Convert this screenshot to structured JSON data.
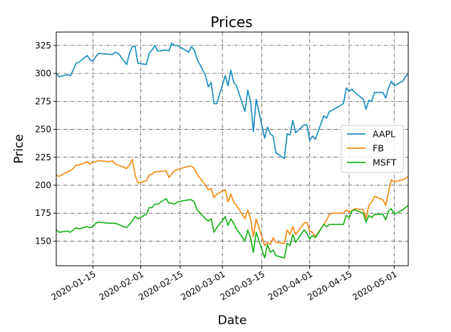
{
  "chart_data": {
    "type": "line",
    "title": "Prices",
    "xlabel": "Date",
    "ylabel": "Price",
    "xlim": [
      "2020-01-02",
      "2020-05-06"
    ],
    "ylim": [
      128,
      337
    ],
    "x_ticks": [
      "2020-01-15",
      "2020-02-01",
      "2020-02-15",
      "2020-03-01",
      "2020-03-15",
      "2020-04-01",
      "2020-04-15",
      "2020-05-01"
    ],
    "y_ticks": [
      150,
      175,
      200,
      225,
      250,
      275,
      300,
      325
    ],
    "grid": true,
    "legend_position": "center-right",
    "series": [
      {
        "name": "AAPL",
        "color": "#1f8fc0",
        "points": [
          [
            "2020-01-02",
            300
          ],
          [
            "2020-01-03",
            297
          ],
          [
            "2020-01-06",
            299
          ],
          [
            "2020-01-07",
            298
          ],
          [
            "2020-01-08",
            303
          ],
          [
            "2020-01-09",
            309
          ],
          [
            "2020-01-10",
            310
          ],
          [
            "2020-01-13",
            316
          ],
          [
            "2020-01-14",
            312
          ],
          [
            "2020-01-15",
            311
          ],
          [
            "2020-01-16",
            315
          ],
          [
            "2020-01-17",
            318
          ],
          [
            "2020-01-21",
            317
          ],
          [
            "2020-01-22",
            317
          ],
          [
            "2020-01-23",
            319
          ],
          [
            "2020-01-24",
            318
          ],
          [
            "2020-01-27",
            308
          ],
          [
            "2020-01-28",
            318
          ],
          [
            "2020-01-29",
            324
          ],
          [
            "2020-01-30",
            324
          ],
          [
            "2020-01-31",
            309
          ],
          [
            "2020-02-03",
            308
          ],
          [
            "2020-02-04",
            318
          ],
          [
            "2020-02-05",
            321
          ],
          [
            "2020-02-06",
            325
          ],
          [
            "2020-02-07",
            320
          ],
          [
            "2020-02-10",
            321
          ],
          [
            "2020-02-11",
            320
          ],
          [
            "2020-02-12",
            327
          ],
          [
            "2020-02-13",
            325
          ],
          [
            "2020-02-14",
            325
          ],
          [
            "2020-02-18",
            319
          ],
          [
            "2020-02-19",
            324
          ],
          [
            "2020-02-20",
            321
          ],
          [
            "2020-02-21",
            313
          ],
          [
            "2020-02-24",
            298
          ],
          [
            "2020-02-25",
            288
          ],
          [
            "2020-02-26",
            292
          ],
          [
            "2020-02-27",
            273
          ],
          [
            "2020-02-28",
            273
          ],
          [
            "2020-03-02",
            298
          ],
          [
            "2020-03-03",
            289
          ],
          [
            "2020-03-04",
            303
          ],
          [
            "2020-03-05",
            292
          ],
          [
            "2020-03-06",
            289
          ],
          [
            "2020-03-09",
            266
          ],
          [
            "2020-03-10",
            285
          ],
          [
            "2020-03-11",
            275
          ],
          [
            "2020-03-12",
            248
          ],
          [
            "2020-03-13",
            277
          ],
          [
            "2020-03-16",
            242
          ],
          [
            "2020-03-17",
            252
          ],
          [
            "2020-03-18",
            246
          ],
          [
            "2020-03-19",
            244
          ],
          [
            "2020-03-20",
            229
          ],
          [
            "2020-03-23",
            224
          ],
          [
            "2020-03-24",
            246
          ],
          [
            "2020-03-25",
            245
          ],
          [
            "2020-03-26",
            258
          ],
          [
            "2020-03-27",
            247
          ],
          [
            "2020-03-30",
            254
          ],
          [
            "2020-03-31",
            254
          ],
          [
            "2020-04-01",
            240
          ],
          [
            "2020-04-02",
            244
          ],
          [
            "2020-04-03",
            241
          ],
          [
            "2020-04-06",
            262
          ],
          [
            "2020-04-07",
            260
          ],
          [
            "2020-04-08",
            266
          ],
          [
            "2020-04-09",
            267
          ],
          [
            "2020-04-13",
            273
          ],
          [
            "2020-04-14",
            287
          ],
          [
            "2020-04-15",
            284
          ],
          [
            "2020-04-16",
            286
          ],
          [
            "2020-04-17",
            283
          ],
          [
            "2020-04-20",
            277
          ],
          [
            "2020-04-21",
            268
          ],
          [
            "2020-04-22",
            276
          ],
          [
            "2020-04-23",
            275
          ],
          [
            "2020-04-24",
            283
          ],
          [
            "2020-04-27",
            283
          ],
          [
            "2020-04-28",
            278
          ],
          [
            "2020-04-29",
            287
          ],
          [
            "2020-04-30",
            293
          ],
          [
            "2020-05-01",
            289
          ],
          [
            "2020-05-04",
            293
          ],
          [
            "2020-05-05",
            297
          ],
          [
            "2020-05-06",
            300
          ]
        ]
      },
      {
        "name": "FB",
        "color": "#f58c16",
        "points": [
          [
            "2020-01-02",
            209
          ],
          [
            "2020-01-03",
            208
          ],
          [
            "2020-01-06",
            212
          ],
          [
            "2020-01-07",
            213
          ],
          [
            "2020-01-08",
            215
          ],
          [
            "2020-01-09",
            218
          ],
          [
            "2020-01-10",
            218
          ],
          [
            "2020-01-13",
            221
          ],
          [
            "2020-01-14",
            219
          ],
          [
            "2020-01-15",
            221
          ],
          [
            "2020-01-16",
            221
          ],
          [
            "2020-01-17",
            222
          ],
          [
            "2020-01-21",
            221
          ],
          [
            "2020-01-22",
            222
          ],
          [
            "2020-01-23",
            219
          ],
          [
            "2020-01-24",
            218
          ],
          [
            "2020-01-27",
            215
          ],
          [
            "2020-01-28",
            218
          ],
          [
            "2020-01-29",
            223
          ],
          [
            "2020-01-30",
            209
          ],
          [
            "2020-01-31",
            202
          ],
          [
            "2020-02-03",
            204
          ],
          [
            "2020-02-04",
            209
          ],
          [
            "2020-02-05",
            210
          ],
          [
            "2020-02-06",
            212
          ],
          [
            "2020-02-07",
            212
          ],
          [
            "2020-02-10",
            213
          ],
          [
            "2020-02-11",
            207
          ],
          [
            "2020-02-12",
            210
          ],
          [
            "2020-02-13",
            213
          ],
          [
            "2020-02-14",
            214
          ],
          [
            "2020-02-18",
            217
          ],
          [
            "2020-02-19",
            217
          ],
          [
            "2020-02-20",
            215
          ],
          [
            "2020-02-21",
            210
          ],
          [
            "2020-02-24",
            200
          ],
          [
            "2020-02-25",
            196
          ],
          [
            "2020-02-26",
            197
          ],
          [
            "2020-02-27",
            189
          ],
          [
            "2020-02-28",
            192
          ],
          [
            "2020-03-02",
            196
          ],
          [
            "2020-03-03",
            185
          ],
          [
            "2020-03-04",
            192
          ],
          [
            "2020-03-05",
            185
          ],
          [
            "2020-03-06",
            182
          ],
          [
            "2020-03-09",
            170
          ],
          [
            "2020-03-10",
            178
          ],
          [
            "2020-03-11",
            170
          ],
          [
            "2020-03-12",
            154
          ],
          [
            "2020-03-13",
            170
          ],
          [
            "2020-03-16",
            146
          ],
          [
            "2020-03-17",
            149
          ],
          [
            "2020-03-18",
            147
          ],
          [
            "2020-03-19",
            153
          ],
          [
            "2020-03-20",
            149
          ],
          [
            "2020-03-23",
            148
          ],
          [
            "2020-03-24",
            160
          ],
          [
            "2020-03-25",
            156
          ],
          [
            "2020-03-26",
            163
          ],
          [
            "2020-03-27",
            156
          ],
          [
            "2020-03-30",
            166
          ],
          [
            "2020-03-31",
            167
          ],
          [
            "2020-04-01",
            159
          ],
          [
            "2020-04-02",
            158
          ],
          [
            "2020-04-03",
            154
          ],
          [
            "2020-04-06",
            165
          ],
          [
            "2020-04-07",
            169
          ],
          [
            "2020-04-08",
            174
          ],
          [
            "2020-04-09",
            175
          ],
          [
            "2020-04-13",
            175
          ],
          [
            "2020-04-14",
            178
          ],
          [
            "2020-04-15",
            176
          ],
          [
            "2020-04-16",
            177
          ],
          [
            "2020-04-17",
            179
          ],
          [
            "2020-04-20",
            178
          ],
          [
            "2020-04-21",
            170
          ],
          [
            "2020-04-22",
            182
          ],
          [
            "2020-04-23",
            185
          ],
          [
            "2020-04-24",
            190
          ],
          [
            "2020-04-27",
            187
          ],
          [
            "2020-04-28",
            182
          ],
          [
            "2020-04-29",
            194
          ],
          [
            "2020-04-30",
            205
          ],
          [
            "2020-05-01",
            203
          ],
          [
            "2020-05-04",
            205
          ],
          [
            "2020-05-05",
            206
          ],
          [
            "2020-05-06",
            208
          ]
        ]
      },
      {
        "name": "MSFT",
        "color": "#1db31d",
        "points": [
          [
            "2020-01-02",
            160
          ],
          [
            "2020-01-03",
            158
          ],
          [
            "2020-01-06",
            159
          ],
          [
            "2020-01-07",
            158
          ],
          [
            "2020-01-08",
            160
          ],
          [
            "2020-01-09",
            162
          ],
          [
            "2020-01-10",
            161
          ],
          [
            "2020-01-13",
            163
          ],
          [
            "2020-01-14",
            162
          ],
          [
            "2020-01-15",
            163
          ],
          [
            "2020-01-16",
            166
          ],
          [
            "2020-01-17",
            167
          ],
          [
            "2020-01-21",
            166
          ],
          [
            "2020-01-22",
            166
          ],
          [
            "2020-01-23",
            166
          ],
          [
            "2020-01-24",
            165
          ],
          [
            "2020-01-27",
            162
          ],
          [
            "2020-01-28",
            165
          ],
          [
            "2020-01-29",
            168
          ],
          [
            "2020-01-30",
            172
          ],
          [
            "2020-01-31",
            170
          ],
          [
            "2020-02-03",
            174
          ],
          [
            "2020-02-04",
            180
          ],
          [
            "2020-02-05",
            180
          ],
          [
            "2020-02-06",
            183
          ],
          [
            "2020-02-07",
            183
          ],
          [
            "2020-02-10",
            188
          ],
          [
            "2020-02-11",
            184
          ],
          [
            "2020-02-12",
            184
          ],
          [
            "2020-02-13",
            183
          ],
          [
            "2020-02-14",
            185
          ],
          [
            "2020-02-18",
            187
          ],
          [
            "2020-02-19",
            187
          ],
          [
            "2020-02-20",
            185
          ],
          [
            "2020-02-21",
            178
          ],
          [
            "2020-02-24",
            170
          ],
          [
            "2020-02-25",
            168
          ],
          [
            "2020-02-26",
            170
          ],
          [
            "2020-02-27",
            158
          ],
          [
            "2020-02-28",
            162
          ],
          [
            "2020-03-02",
            172
          ],
          [
            "2020-03-03",
            164
          ],
          [
            "2020-03-04",
            170
          ],
          [
            "2020-03-05",
            166
          ],
          [
            "2020-03-06",
            161
          ],
          [
            "2020-03-09",
            150
          ],
          [
            "2020-03-10",
            160
          ],
          [
            "2020-03-11",
            153
          ],
          [
            "2020-03-12",
            140
          ],
          [
            "2020-03-13",
            158
          ],
          [
            "2020-03-16",
            135
          ],
          [
            "2020-03-17",
            147
          ],
          [
            "2020-03-18",
            140
          ],
          [
            "2020-03-19",
            142
          ],
          [
            "2020-03-20",
            137
          ],
          [
            "2020-03-23",
            135
          ],
          [
            "2020-03-24",
            148
          ],
          [
            "2020-03-25",
            146
          ],
          [
            "2020-03-26",
            156
          ],
          [
            "2020-03-27",
            149
          ],
          [
            "2020-03-30",
            160
          ],
          [
            "2020-03-31",
            157
          ],
          [
            "2020-04-01",
            152
          ],
          [
            "2020-04-02",
            155
          ],
          [
            "2020-04-03",
            153
          ],
          [
            "2020-04-06",
            165
          ],
          [
            "2020-04-07",
            163
          ],
          [
            "2020-04-08",
            165
          ],
          [
            "2020-04-09",
            165
          ],
          [
            "2020-04-13",
            165
          ],
          [
            "2020-04-14",
            173
          ],
          [
            "2020-04-15",
            171
          ],
          [
            "2020-04-16",
            177
          ],
          [
            "2020-04-17",
            178
          ],
          [
            "2020-04-20",
            175
          ],
          [
            "2020-04-21",
            167
          ],
          [
            "2020-04-22",
            173
          ],
          [
            "2020-04-23",
            171
          ],
          [
            "2020-04-24",
            174
          ],
          [
            "2020-04-27",
            174
          ],
          [
            "2020-04-28",
            169
          ],
          [
            "2020-04-29",
            177
          ],
          [
            "2020-04-30",
            179
          ],
          [
            "2020-05-01",
            174
          ],
          [
            "2020-05-04",
            178
          ],
          [
            "2020-05-05",
            180
          ],
          [
            "2020-05-06",
            182
          ]
        ]
      }
    ]
  }
}
